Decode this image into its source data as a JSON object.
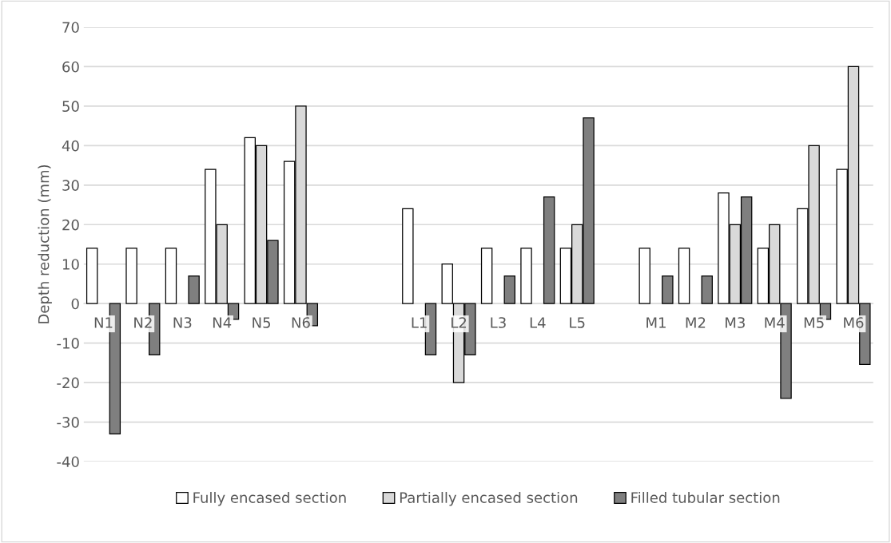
{
  "chart_data": {
    "type": "bar",
    "ylabel": "Depth reduction (mm)",
    "categories": [
      "N1",
      "N2",
      "N3",
      "N4",
      "N5",
      "N6",
      null,
      null,
      "L1",
      "L2",
      "L3",
      "L4",
      "L5",
      null,
      "M1",
      "M2",
      "M3",
      "M4",
      "M5",
      "M6"
    ],
    "series": [
      {
        "name": "Fully encased section",
        "color": "#ffffff",
        "values": [
          14,
          14,
          14,
          34,
          42,
          36,
          null,
          null,
          24,
          10,
          14,
          14,
          14,
          null,
          14,
          14,
          28,
          14,
          24,
          34
        ]
      },
      {
        "name": "Partially encased section",
        "color": "#d9d9d9",
        "values": [
          null,
          null,
          null,
          20,
          40,
          50,
          null,
          null,
          null,
          -20,
          null,
          null,
          20,
          null,
          null,
          null,
          20,
          20,
          40,
          60
        ]
      },
      {
        "name": "Filled tubular section",
        "color": "#7f7f7f",
        "values": [
          -33,
          -13,
          7,
          -4,
          16,
          -5.6,
          null,
          null,
          -13,
          -13,
          7,
          27,
          47,
          null,
          7,
          7,
          27,
          -24,
          -4,
          -15.4
        ]
      }
    ],
    "ylim": [
      -40,
      70
    ],
    "yticks": [
      -40,
      -30,
      -20,
      -10,
      0,
      10,
      20,
      30,
      40,
      50,
      60,
      70
    ],
    "grid": "y",
    "legend": "bottom"
  }
}
